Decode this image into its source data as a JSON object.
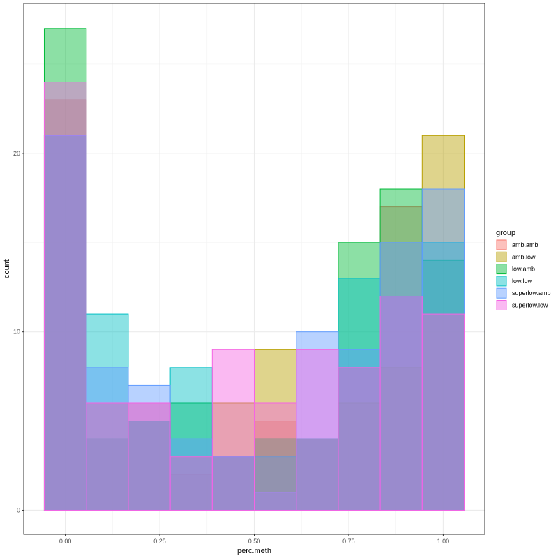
{
  "chart_data": {
    "type": "histogram",
    "title": "",
    "xlabel": "perc.meth",
    "ylabel": "count",
    "xlim": [
      -0.11,
      1.11
    ],
    "ylim": [
      -1.35,
      28.4
    ],
    "x_ticks": [
      {
        "value": 0.0,
        "label": "0.00"
      },
      {
        "value": 0.25,
        "label": "0.25"
      },
      {
        "value": 0.5,
        "label": "0.50"
      },
      {
        "value": 0.75,
        "label": "0.75"
      },
      {
        "value": 1.0,
        "label": "1.00"
      }
    ],
    "y_ticks": [
      {
        "value": 0,
        "label": "0"
      },
      {
        "value": 10,
        "label": "10"
      },
      {
        "value": 20,
        "label": "20"
      }
    ],
    "bins": [
      [
        -0.0556,
        0.0556
      ],
      [
        0.0556,
        0.1667
      ],
      [
        0.1667,
        0.2778
      ],
      [
        0.2778,
        0.3889
      ],
      [
        0.3889,
        0.5
      ],
      [
        0.5,
        0.6111
      ],
      [
        0.6111,
        0.7222
      ],
      [
        0.7222,
        0.8333
      ],
      [
        0.8333,
        0.9444
      ],
      [
        0.9444,
        1.0556
      ]
    ],
    "series": [
      {
        "name": "amb.amb",
        "color": "#F8766D",
        "values": [
          23,
          4,
          6,
          2,
          3,
          5,
          4,
          8,
          17,
          11
        ]
      },
      {
        "name": "amb.low",
        "color": "#B79F00",
        "values": [
          21,
          6,
          5,
          3,
          6,
          9,
          4,
          6,
          8,
          21
        ]
      },
      {
        "name": "low.amb",
        "color": "#00BA38",
        "values": [
          27,
          4,
          5,
          6,
          3,
          4,
          4,
          15,
          18,
          14
        ]
      },
      {
        "name": "low.low",
        "color": "#00BFC4",
        "values": [
          21,
          11,
          5,
          8,
          3,
          3,
          4,
          13,
          12,
          15
        ]
      },
      {
        "name": "superlow.amb",
        "color": "#619CFF",
        "values": [
          21,
          8,
          7,
          4,
          3,
          1,
          10,
          9,
          15,
          18
        ]
      },
      {
        "name": "superlow.low",
        "color": "#F564E3",
        "values": [
          24,
          6,
          6,
          3,
          9,
          6,
          9,
          8,
          12,
          11
        ]
      }
    ],
    "fill_alpha": 0.45,
    "grid": true,
    "legend": {
      "title": "group",
      "position": "right"
    }
  }
}
